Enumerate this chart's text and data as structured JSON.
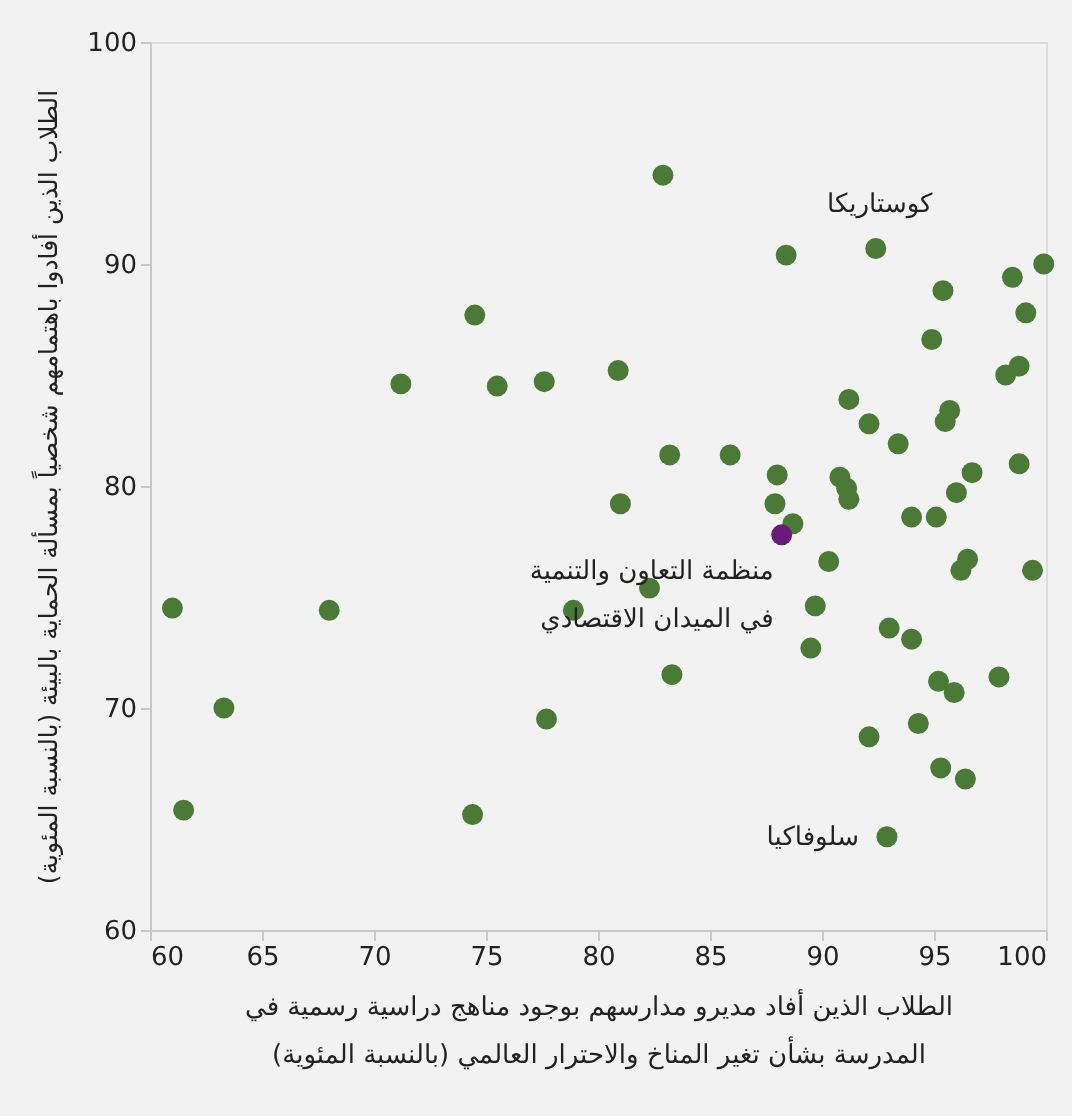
{
  "chart_data": {
    "type": "scatter",
    "xlabel": "الطلاب الذين أفاد مديرو مدارسهم بوجود مناهج دراسية رسمية في\nالمدرسة بشأن تغير المناخ والاحترار العالمي (بالنسبة المئوية)",
    "ylabel": "الطلاب الذين أفادوا باهتمامهم شخصياً بمسألة الحماية بالبيئة (بالنسبة المئوية)",
    "xlim": [
      60,
      100
    ],
    "xticks": [
      60,
      65,
      70,
      75,
      80,
      85,
      90,
      95,
      100
    ],
    "ylim": [
      60,
      100
    ],
    "yticks": [
      60,
      70,
      80,
      90,
      100
    ],
    "grid": false,
    "marker": "circle",
    "series": [
      {
        "color": "#4a7a35",
        "x": [
          82.9,
          92.4,
          88.4,
          99.9,
          98.5,
          95.4,
          99.1,
          74.5,
          94.9,
          71.2,
          75.5,
          77.6,
          80.9,
          98.8,
          98.2,
          91.2,
          95.7,
          95.5,
          92.1,
          93.4,
          83.2,
          85.9,
          88.0,
          98.8,
          96.7,
          90.8,
          91.1,
          81.0,
          87.9,
          91.2,
          96.0,
          94.0,
          95.1,
          88.7,
          96.5,
          96.2,
          99.4,
          90.3,
          82.3,
          78.9,
          89.7,
          89.5,
          94.0,
          93.0,
          83.3,
          95.2,
          95.9,
          97.9,
          92.1,
          94.3,
          95.3,
          96.4,
          92.9,
          61.0,
          68.0,
          63.3,
          61.5,
          74.4,
          77.7
        ],
        "values": [
          94.0,
          90.7,
          90.4,
          90.0,
          89.4,
          88.8,
          87.8,
          87.7,
          86.6,
          84.6,
          84.5,
          84.7,
          85.2,
          85.4,
          85.0,
          83.9,
          83.4,
          82.9,
          82.8,
          81.9,
          81.4,
          81.4,
          80.5,
          81.0,
          80.6,
          80.4,
          79.9,
          79.2,
          79.2,
          79.4,
          79.7,
          78.6,
          78.6,
          78.3,
          76.7,
          76.2,
          76.2,
          76.6,
          75.4,
          74.4,
          74.6,
          72.7,
          73.1,
          73.6,
          71.5,
          71.2,
          70.7,
          71.4,
          68.7,
          69.3,
          67.3,
          66.8,
          64.2,
          74.5,
          74.4,
          70.0,
          65.4,
          65.2,
          69.5
        ]
      },
      {
        "color": "#6a1b7a",
        "x": [
          88.2
        ],
        "values": [
          77.8
        ]
      }
    ],
    "annotations": [
      {
        "text": "كوستاريكا",
        "x": 92.4,
        "y": 90.7
      },
      {
        "text": "منظمة التعاون والتنمية\nفي الميدان الاقتصادي",
        "x": 88.2,
        "y": 77.8
      },
      {
        "text": "سلوفاكيا",
        "x": 92.9,
        "y": 64.2
      }
    ]
  }
}
